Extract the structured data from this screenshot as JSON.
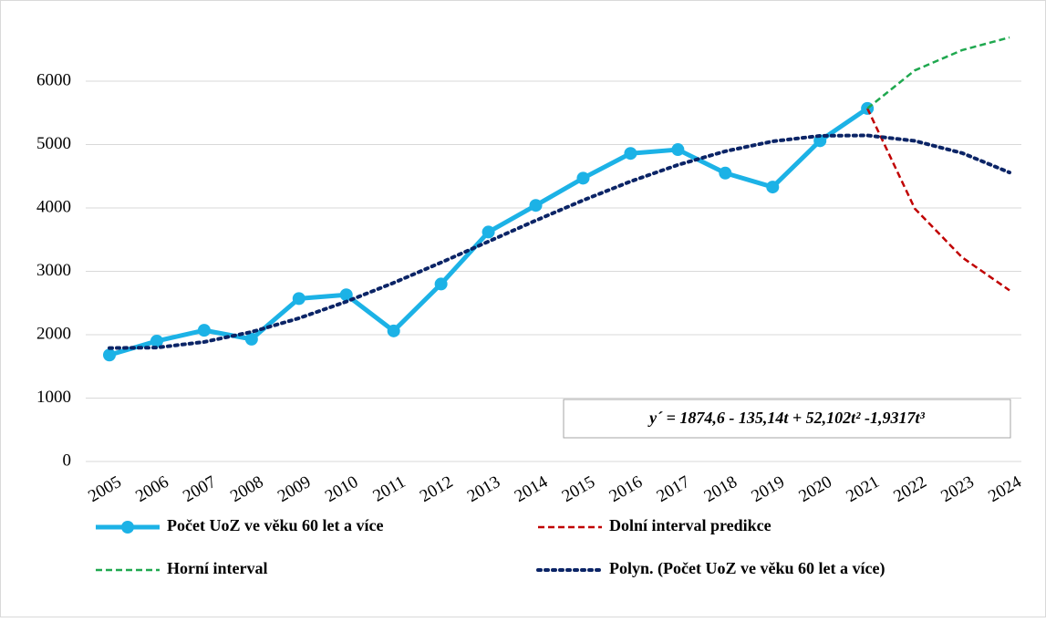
{
  "chart_data": {
    "type": "line",
    "annotation": "y´ = 1874,6 - 135,14t + 52,102t² -1,9317t³",
    "categories": [
      "2005",
      "2006",
      "2007",
      "2008",
      "2009",
      "2010",
      "2011",
      "2012",
      "2013",
      "2014",
      "2015",
      "2016",
      "2017",
      "2018",
      "2019",
      "2020",
      "2021",
      "2022",
      "2023",
      "2024"
    ],
    "ylim": [
      0,
      6000
    ],
    "yticks": [
      0,
      1000,
      2000,
      3000,
      4000,
      5000,
      6000
    ],
    "grid": true,
    "series": [
      {
        "name": "Počet UoZ ve věku 60 let a více",
        "color": "#1cb2e6",
        "style": "solid",
        "markers": true,
        "values": [
          1680,
          1900,
          2070,
          1930,
          2570,
          2630,
          2060,
          2800,
          3620,
          4040,
          4470,
          4860,
          4920,
          4550,
          4330,
          5060,
          5570,
          null,
          null,
          null
        ]
      },
      {
        "name": "Dolní interval predikce",
        "color": "#c00000",
        "style": "dashed",
        "values": [
          null,
          null,
          null,
          null,
          null,
          null,
          null,
          null,
          null,
          null,
          null,
          null,
          null,
          null,
          null,
          null,
          5570,
          3990,
          3220,
          2700
        ]
      },
      {
        "name": "Horní interval",
        "color": "#1fa84f",
        "style": "dashed",
        "values": [
          null,
          null,
          null,
          null,
          null,
          null,
          null,
          null,
          null,
          null,
          null,
          null,
          null,
          null,
          null,
          null,
          5570,
          6170,
          6490,
          6690
        ]
      },
      {
        "name": "Polyn. (Počet UoZ ve věku 60 let a více)",
        "color": "#0b2466",
        "style": "dotted",
        "values": [
          1790,
          1797,
          1886,
          2044,
          2260,
          2522,
          2819,
          3139,
          3470,
          3802,
          4121,
          4418,
          4679,
          4894,
          5051,
          5138,
          5144,
          5058,
          4866,
          4559
        ]
      }
    ],
    "legend": "bottom"
  }
}
